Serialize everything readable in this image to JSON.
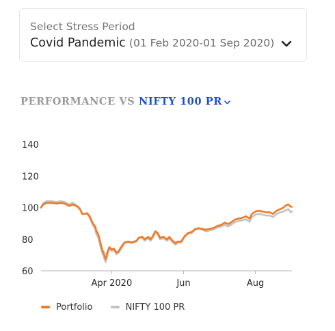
{
  "stress_period": {
    "label": "Select Stress Period",
    "selected_name": "Covid Pandemic",
    "selected_range": "(01 Feb 2020-01 Sep 2020)"
  },
  "performance": {
    "prefix": "PERFORMANCE VS",
    "benchmark": "NIFTY 100 PR"
  },
  "colors": {
    "portfolio": "#f07a25",
    "benchmark": "#c2c2c2",
    "link": "#1b4fcf"
  },
  "chart_data": {
    "type": "line",
    "x_range": [
      "2020-02-01",
      "2020-09-01"
    ],
    "x_ticks": [
      {
        "date": "2020-04-01",
        "label": "Apr 2020"
      },
      {
        "date": "2020-06-01",
        "label": "Jun"
      },
      {
        "date": "2020-08-01",
        "label": "Aug"
      }
    ],
    "ylim": [
      60,
      140
    ],
    "y_ticks": [
      60,
      80,
      100,
      120,
      140
    ],
    "grid": false,
    "legend_position": "bottom-left",
    "series": [
      {
        "name": "Portfolio",
        "points": [
          [
            "2020-02-01",
            100
          ],
          [
            "2020-02-03",
            102
          ],
          [
            "2020-02-06",
            103
          ],
          [
            "2020-02-10",
            103
          ],
          [
            "2020-02-14",
            102.5
          ],
          [
            "2020-02-18",
            103
          ],
          [
            "2020-02-21",
            102.5
          ],
          [
            "2020-02-25",
            101
          ],
          [
            "2020-02-28",
            102
          ],
          [
            "2020-03-03",
            100.5
          ],
          [
            "2020-03-05",
            99
          ],
          [
            "2020-03-07",
            96
          ],
          [
            "2020-03-09",
            96
          ],
          [
            "2020-03-11",
            96.5
          ],
          [
            "2020-03-13",
            95
          ],
          [
            "2020-03-16",
            90
          ],
          [
            "2020-03-18",
            88
          ],
          [
            "2020-03-19",
            85
          ],
          [
            "2020-03-20",
            84
          ],
          [
            "2020-03-21",
            82
          ],
          [
            "2020-03-23",
            76
          ],
          [
            "2020-03-24",
            73
          ],
          [
            "2020-03-25",
            72
          ],
          [
            "2020-03-26",
            69
          ],
          [
            "2020-03-27",
            67.5
          ],
          [
            "2020-03-28",
            71
          ],
          [
            "2020-03-30",
            75
          ],
          [
            "2020-04-01",
            73.5
          ],
          [
            "2020-04-03",
            74
          ],
          [
            "2020-04-05",
            71.5
          ],
          [
            "2020-04-07",
            72.5
          ],
          [
            "2020-04-09",
            75
          ],
          [
            "2020-04-12",
            78
          ],
          [
            "2020-04-15",
            78.5
          ],
          [
            "2020-04-18",
            78
          ],
          [
            "2020-04-22",
            79
          ],
          [
            "2020-04-24",
            81
          ],
          [
            "2020-04-27",
            81.5
          ],
          [
            "2020-04-29",
            80
          ],
          [
            "2020-05-02",
            81.5
          ],
          [
            "2020-05-04",
            80
          ],
          [
            "2020-05-06",
            82
          ],
          [
            "2020-05-08",
            85
          ],
          [
            "2020-05-10",
            84
          ],
          [
            "2020-05-12",
            81
          ],
          [
            "2020-05-15",
            81.5
          ],
          [
            "2020-05-18",
            80
          ],
          [
            "2020-05-20",
            81.5
          ],
          [
            "2020-05-22",
            79.5
          ],
          [
            "2020-05-25",
            77.5
          ],
          [
            "2020-05-27",
            78.5
          ],
          [
            "2020-05-30",
            78.5
          ],
          [
            "2020-06-02",
            82
          ],
          [
            "2020-06-05",
            84
          ],
          [
            "2020-06-08",
            84.5
          ],
          [
            "2020-06-11",
            86.5
          ],
          [
            "2020-06-14",
            87
          ],
          [
            "2020-06-17",
            86.5
          ],
          [
            "2020-06-20",
            86
          ],
          [
            "2020-06-23",
            86.5
          ],
          [
            "2020-06-26",
            87
          ],
          [
            "2020-06-30",
            88.5
          ],
          [
            "2020-07-03",
            89
          ],
          [
            "2020-07-06",
            90.5
          ],
          [
            "2020-07-09",
            89.5
          ],
          [
            "2020-07-12",
            91
          ],
          [
            "2020-07-15",
            92.5
          ],
          [
            "2020-07-18",
            93
          ],
          [
            "2020-07-21",
            93.5
          ],
          [
            "2020-07-24",
            94.5
          ],
          [
            "2020-07-27",
            93
          ],
          [
            "2020-07-29",
            96
          ],
          [
            "2020-08-01",
            97.5
          ],
          [
            "2020-08-04",
            98
          ],
          [
            "2020-08-07",
            97.5
          ],
          [
            "2020-08-10",
            97
          ],
          [
            "2020-08-13",
            97
          ],
          [
            "2020-08-16",
            96
          ],
          [
            "2020-08-19",
            98
          ],
          [
            "2020-08-22",
            99
          ],
          [
            "2020-08-25",
            100
          ],
          [
            "2020-08-27",
            101.5
          ],
          [
            "2020-08-29",
            102
          ],
          [
            "2020-08-31",
            100.5
          ],
          [
            "2020-09-01",
            100.5
          ]
        ]
      },
      {
        "name": "NIFTY 100 PR",
        "points": [
          [
            "2020-02-01",
            100
          ],
          [
            "2020-02-03",
            103
          ],
          [
            "2020-02-06",
            104
          ],
          [
            "2020-02-10",
            104
          ],
          [
            "2020-02-14",
            103.5
          ],
          [
            "2020-02-18",
            104
          ],
          [
            "2020-02-21",
            103.5
          ],
          [
            "2020-02-25",
            102
          ],
          [
            "2020-02-28",
            103
          ],
          [
            "2020-03-03",
            101
          ],
          [
            "2020-03-05",
            99.5
          ],
          [
            "2020-03-07",
            96
          ],
          [
            "2020-03-09",
            96
          ],
          [
            "2020-03-11",
            96
          ],
          [
            "2020-03-13",
            94
          ],
          [
            "2020-03-16",
            89
          ],
          [
            "2020-03-18",
            86.5
          ],
          [
            "2020-03-19",
            83
          ],
          [
            "2020-03-20",
            82
          ],
          [
            "2020-03-21",
            80
          ],
          [
            "2020-03-23",
            74
          ],
          [
            "2020-03-24",
            71
          ],
          [
            "2020-03-25",
            70
          ],
          [
            "2020-03-26",
            67
          ],
          [
            "2020-03-27",
            65.5
          ],
          [
            "2020-03-28",
            69
          ],
          [
            "2020-03-30",
            74
          ],
          [
            "2020-04-01",
            72.5
          ],
          [
            "2020-04-03",
            73
          ],
          [
            "2020-04-05",
            70.5
          ],
          [
            "2020-04-07",
            71.5
          ],
          [
            "2020-04-09",
            74
          ],
          [
            "2020-04-12",
            77.5
          ],
          [
            "2020-04-15",
            78
          ],
          [
            "2020-04-18",
            77.5
          ],
          [
            "2020-04-22",
            78.5
          ],
          [
            "2020-04-24",
            80.5
          ],
          [
            "2020-04-27",
            81
          ],
          [
            "2020-04-29",
            79
          ],
          [
            "2020-05-02",
            80.5
          ],
          [
            "2020-05-04",
            79
          ],
          [
            "2020-05-06",
            81
          ],
          [
            "2020-05-08",
            84
          ],
          [
            "2020-05-10",
            83
          ],
          [
            "2020-05-12",
            80
          ],
          [
            "2020-05-15",
            80.5
          ],
          [
            "2020-05-18",
            79
          ],
          [
            "2020-05-20",
            80.5
          ],
          [
            "2020-05-22",
            78.5
          ],
          [
            "2020-05-25",
            76.5
          ],
          [
            "2020-05-27",
            77.5
          ],
          [
            "2020-05-30",
            78
          ],
          [
            "2020-06-02",
            81.5
          ],
          [
            "2020-06-05",
            83.5
          ],
          [
            "2020-06-08",
            84
          ],
          [
            "2020-06-11",
            86
          ],
          [
            "2020-06-14",
            86.5
          ],
          [
            "2020-06-17",
            86
          ],
          [
            "2020-06-20",
            85
          ],
          [
            "2020-06-23",
            85.5
          ],
          [
            "2020-06-26",
            86
          ],
          [
            "2020-06-30",
            87.5
          ],
          [
            "2020-07-03",
            88
          ],
          [
            "2020-07-06",
            89
          ],
          [
            "2020-07-09",
            88
          ],
          [
            "2020-07-12",
            89.5
          ],
          [
            "2020-07-15",
            91
          ],
          [
            "2020-07-18",
            91.5
          ],
          [
            "2020-07-21",
            92
          ],
          [
            "2020-07-24",
            92.5
          ],
          [
            "2020-07-27",
            91
          ],
          [
            "2020-07-29",
            94
          ],
          [
            "2020-08-01",
            95.5
          ],
          [
            "2020-08-04",
            96
          ],
          [
            "2020-08-07",
            95.5
          ],
          [
            "2020-08-10",
            95
          ],
          [
            "2020-08-13",
            95
          ],
          [
            "2020-08-16",
            94
          ],
          [
            "2020-08-19",
            96
          ],
          [
            "2020-08-22",
            97
          ],
          [
            "2020-08-25",
            97.5
          ],
          [
            "2020-08-27",
            98.5
          ],
          [
            "2020-08-29",
            99
          ],
          [
            "2020-08-31",
            97
          ],
          [
            "2020-09-01",
            97.5
          ]
        ]
      }
    ]
  }
}
